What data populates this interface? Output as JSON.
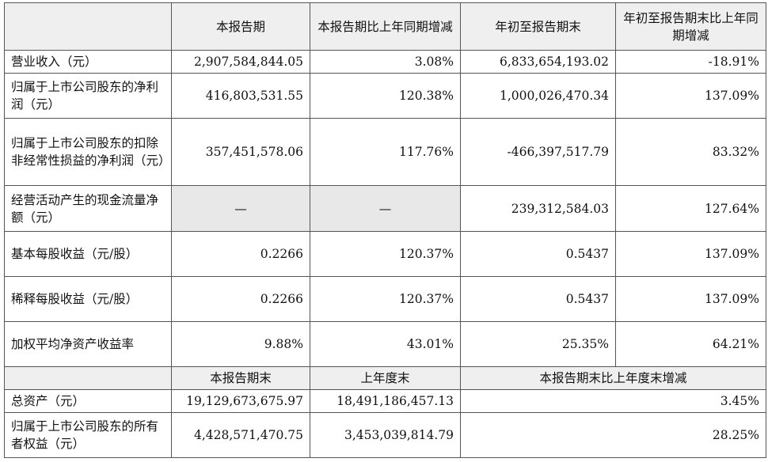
{
  "header": {
    "c1": "本报告期",
    "c2": "本报告期比上年同期增减",
    "c3": "年初至报告期末",
    "c4": "年初至报告期末比上年同期增减"
  },
  "rows": [
    {
      "label": "营业收入（元）",
      "v1": "2,907,584,844.05",
      "v2": "3.08%",
      "v3": "6,833,654,193.02",
      "v4": "-18.91%"
    },
    {
      "label": "归属于上市公司股东的净利润（元）",
      "v1": "416,803,531.55",
      "v2": "120.38%",
      "v3": "1,000,026,470.34",
      "v4": "137.09%"
    },
    {
      "label": "归属于上市公司股东的扣除非经常性损益的净利润（元）",
      "v1": "357,451,578.06",
      "v2": "117.76%",
      "v3": "-466,397,517.79",
      "v4": "83.32%"
    },
    {
      "label": "经营活动产生的现金流量净额（元）",
      "v1": "—",
      "v2": "—",
      "v3": "239,312,584.03",
      "v4": "127.64%"
    },
    {
      "label": "基本每股收益（元/股）",
      "v1": "0.2266",
      "v2": "120.37%",
      "v3": "0.5437",
      "v4": "137.09%"
    },
    {
      "label": "稀释每股收益（元/股）",
      "v1": "0.2266",
      "v2": "120.37%",
      "v3": "0.5437",
      "v4": "137.09%"
    },
    {
      "label": "加权平均净资产收益率",
      "v1": "9.88%",
      "v2": "43.01%",
      "v3": "25.35%",
      "v4": "64.21%"
    }
  ],
  "header2": {
    "c1": "本报告期末",
    "c2": "上年度末",
    "c3": "本报告期末比上年度末增减"
  },
  "rows2": [
    {
      "label": "总资产（元）",
      "v1": "19,129,673,675.97",
      "v2": "18,491,186,457.13",
      "v3": "3.45%"
    },
    {
      "label": "归属于上市公司股东的所有者权益（元）",
      "v1": "4,428,571,470.75",
      "v2": "3,453,039,814.79",
      "v3": "28.25%"
    }
  ]
}
